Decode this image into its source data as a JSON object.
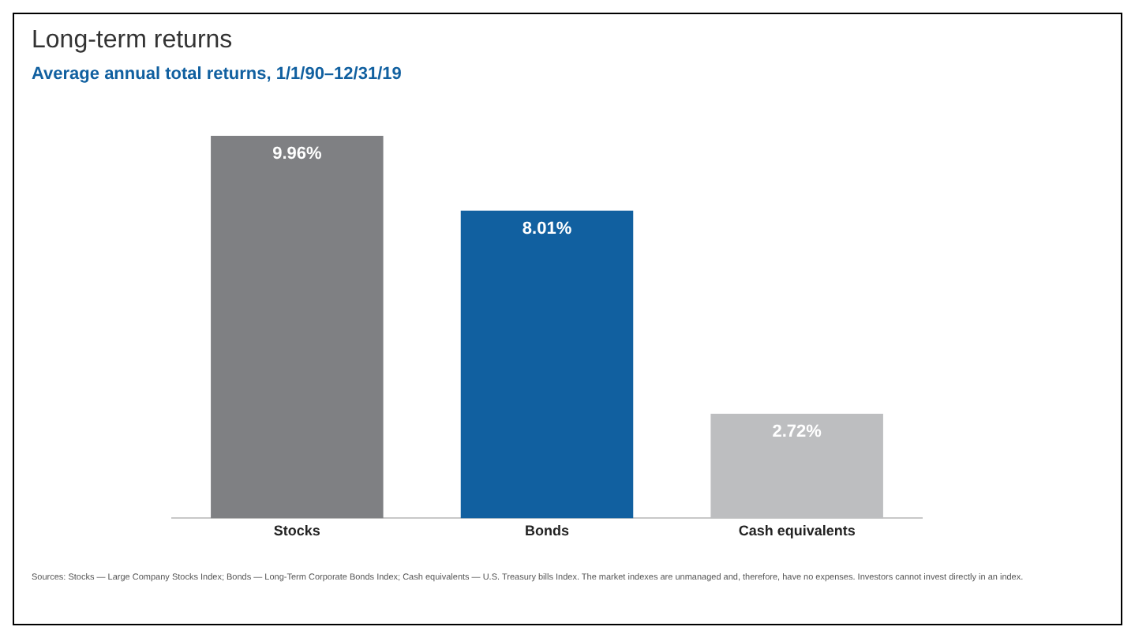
{
  "chart_data": {
    "type": "bar",
    "title": "Long-term returns",
    "subtitle": "Average annual total returns, 1/1/90–12/31/19",
    "categories": [
      "Stocks",
      "Bonds",
      "Cash equivalents"
    ],
    "values": [
      9.96,
      8.01,
      2.72
    ],
    "colors": [
      "#7f8083",
      "#1160a0",
      "#bdbec0"
    ],
    "value_labels": [
      "9.96%",
      "8.01%",
      "2.72%"
    ],
    "legend": false,
    "annotations": [
      "Sources: Stocks — Large Company Stocks Index; Bonds — Long-Term Corporate Bonds Index; Cash equivalents — U.S. Treasury bills Index. The market indexes are unmanaged and, therefore, have no expenses. Investors cannot invest directly in an index."
    ]
  }
}
